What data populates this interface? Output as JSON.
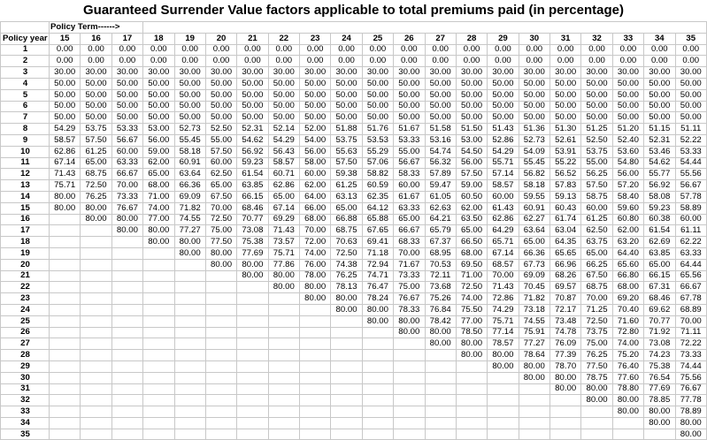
{
  "title": "Guaranteed Surrender Value factors applicable to total premiums paid (in percentage)",
  "policy_term_label": "Policy Term------>",
  "header_label": "Policy year",
  "policy_terms": [
    "15",
    "16",
    "17",
    "18",
    "19",
    "20",
    "21",
    "22",
    "23",
    "24",
    "25",
    "26",
    "27",
    "28",
    "29",
    "30",
    "31",
    "32",
    "33",
    "34",
    "35"
  ],
  "rows": [
    {
      "year": "1",
      "values": [
        "0.00",
        "0.00",
        "0.00",
        "0.00",
        "0.00",
        "0.00",
        "0.00",
        "0.00",
        "0.00",
        "0.00",
        "0.00",
        "0.00",
        "0.00",
        "0.00",
        "0.00",
        "0.00",
        "0.00",
        "0.00",
        "0.00",
        "0.00",
        "0.00"
      ]
    },
    {
      "year": "2",
      "values": [
        "0.00",
        "0.00",
        "0.00",
        "0.00",
        "0.00",
        "0.00",
        "0.00",
        "0.00",
        "0.00",
        "0.00",
        "0.00",
        "0.00",
        "0.00",
        "0.00",
        "0.00",
        "0.00",
        "0.00",
        "0.00",
        "0.00",
        "0.00",
        "0.00"
      ]
    },
    {
      "year": "3",
      "values": [
        "30.00",
        "30.00",
        "30.00",
        "30.00",
        "30.00",
        "30.00",
        "30.00",
        "30.00",
        "30.00",
        "30.00",
        "30.00",
        "30.00",
        "30.00",
        "30.00",
        "30.00",
        "30.00",
        "30.00",
        "30.00",
        "30.00",
        "30.00",
        "30.00"
      ]
    },
    {
      "year": "4",
      "values": [
        "50.00",
        "50.00",
        "50.00",
        "50.00",
        "50.00",
        "50.00",
        "50.00",
        "50.00",
        "50.00",
        "50.00",
        "50.00",
        "50.00",
        "50.00",
        "50.00",
        "50.00",
        "50.00",
        "50.00",
        "50.00",
        "50.00",
        "50.00",
        "50.00"
      ]
    },
    {
      "year": "5",
      "values": [
        "50.00",
        "50.00",
        "50.00",
        "50.00",
        "50.00",
        "50.00",
        "50.00",
        "50.00",
        "50.00",
        "50.00",
        "50.00",
        "50.00",
        "50.00",
        "50.00",
        "50.00",
        "50.00",
        "50.00",
        "50.00",
        "50.00",
        "50.00",
        "50.00"
      ]
    },
    {
      "year": "6",
      "values": [
        "50.00",
        "50.00",
        "50.00",
        "50.00",
        "50.00",
        "50.00",
        "50.00",
        "50.00",
        "50.00",
        "50.00",
        "50.00",
        "50.00",
        "50.00",
        "50.00",
        "50.00",
        "50.00",
        "50.00",
        "50.00",
        "50.00",
        "50.00",
        "50.00"
      ]
    },
    {
      "year": "7",
      "values": [
        "50.00",
        "50.00",
        "50.00",
        "50.00",
        "50.00",
        "50.00",
        "50.00",
        "50.00",
        "50.00",
        "50.00",
        "50.00",
        "50.00",
        "50.00",
        "50.00",
        "50.00",
        "50.00",
        "50.00",
        "50.00",
        "50.00",
        "50.00",
        "50.00"
      ]
    },
    {
      "year": "8",
      "values": [
        "54.29",
        "53.75",
        "53.33",
        "53.00",
        "52.73",
        "52.50",
        "52.31",
        "52.14",
        "52.00",
        "51.88",
        "51.76",
        "51.67",
        "51.58",
        "51.50",
        "51.43",
        "51.36",
        "51.30",
        "51.25",
        "51.20",
        "51.15",
        "51.11"
      ]
    },
    {
      "year": "9",
      "values": [
        "58.57",
        "57.50",
        "56.67",
        "56.00",
        "55.45",
        "55.00",
        "54.62",
        "54.29",
        "54.00",
        "53.75",
        "53.53",
        "53.33",
        "53.16",
        "53.00",
        "52.86",
        "52.73",
        "52.61",
        "52.50",
        "52.40",
        "52.31",
        "52.22"
      ]
    },
    {
      "year": "10",
      "values": [
        "62.86",
        "61.25",
        "60.00",
        "59.00",
        "58.18",
        "57.50",
        "56.92",
        "56.43",
        "56.00",
        "55.63",
        "55.29",
        "55.00",
        "54.74",
        "54.50",
        "54.29",
        "54.09",
        "53.91",
        "53.75",
        "53.60",
        "53.46",
        "53.33"
      ]
    },
    {
      "year": "11",
      "values": [
        "67.14",
        "65.00",
        "63.33",
        "62.00",
        "60.91",
        "60.00",
        "59.23",
        "58.57",
        "58.00",
        "57.50",
        "57.06",
        "56.67",
        "56.32",
        "56.00",
        "55.71",
        "55.45",
        "55.22",
        "55.00",
        "54.80",
        "54.62",
        "54.44"
      ]
    },
    {
      "year": "12",
      "values": [
        "71.43",
        "68.75",
        "66.67",
        "65.00",
        "63.64",
        "62.50",
        "61.54",
        "60.71",
        "60.00",
        "59.38",
        "58.82",
        "58.33",
        "57.89",
        "57.50",
        "57.14",
        "56.82",
        "56.52",
        "56.25",
        "56.00",
        "55.77",
        "55.56"
      ]
    },
    {
      "year": "13",
      "values": [
        "75.71",
        "72.50",
        "70.00",
        "68.00",
        "66.36",
        "65.00",
        "63.85",
        "62.86",
        "62.00",
        "61.25",
        "60.59",
        "60.00",
        "59.47",
        "59.00",
        "58.57",
        "58.18",
        "57.83",
        "57.50",
        "57.20",
        "56.92",
        "56.67"
      ]
    },
    {
      "year": "14",
      "values": [
        "80.00",
        "76.25",
        "73.33",
        "71.00",
        "69.09",
        "67.50",
        "66.15",
        "65.00",
        "64.00",
        "63.13",
        "62.35",
        "61.67",
        "61.05",
        "60.50",
        "60.00",
        "59.55",
        "59.13",
        "58.75",
        "58.40",
        "58.08",
        "57.78"
      ]
    },
    {
      "year": "15",
      "values": [
        "80.00",
        "80.00",
        "76.67",
        "74.00",
        "71.82",
        "70.00",
        "68.46",
        "67.14",
        "66.00",
        "65.00",
        "64.12",
        "63.33",
        "62.63",
        "62.00",
        "61.43",
        "60.91",
        "60.43",
        "60.00",
        "59.60",
        "59.23",
        "58.89"
      ]
    },
    {
      "year": "16",
      "values": [
        "",
        "80.00",
        "80.00",
        "77.00",
        "74.55",
        "72.50",
        "70.77",
        "69.29",
        "68.00",
        "66.88",
        "65.88",
        "65.00",
        "64.21",
        "63.50",
        "62.86",
        "62.27",
        "61.74",
        "61.25",
        "60.80",
        "60.38",
        "60.00"
      ]
    },
    {
      "year": "17",
      "values": [
        "",
        "",
        "80.00",
        "80.00",
        "77.27",
        "75.00",
        "73.08",
        "71.43",
        "70.00",
        "68.75",
        "67.65",
        "66.67",
        "65.79",
        "65.00",
        "64.29",
        "63.64",
        "63.04",
        "62.50",
        "62.00",
        "61.54",
        "61.11"
      ]
    },
    {
      "year": "18",
      "values": [
        "",
        "",
        "",
        "80.00",
        "80.00",
        "77.50",
        "75.38",
        "73.57",
        "72.00",
        "70.63",
        "69.41",
        "68.33",
        "67.37",
        "66.50",
        "65.71",
        "65.00",
        "64.35",
        "63.75",
        "63.20",
        "62.69",
        "62.22"
      ]
    },
    {
      "year": "19",
      "values": [
        "",
        "",
        "",
        "",
        "80.00",
        "80.00",
        "77.69",
        "75.71",
        "74.00",
        "72.50",
        "71.18",
        "70.00",
        "68.95",
        "68.00",
        "67.14",
        "66.36",
        "65.65",
        "65.00",
        "64.40",
        "63.85",
        "63.33"
      ]
    },
    {
      "year": "20",
      "values": [
        "",
        "",
        "",
        "",
        "",
        "80.00",
        "80.00",
        "77.86",
        "76.00",
        "74.38",
        "72.94",
        "71.67",
        "70.53",
        "69.50",
        "68.57",
        "67.73",
        "66.96",
        "66.25",
        "65.60",
        "65.00",
        "64.44"
      ]
    },
    {
      "year": "21",
      "values": [
        "",
        "",
        "",
        "",
        "",
        "",
        "80.00",
        "80.00",
        "78.00",
        "76.25",
        "74.71",
        "73.33",
        "72.11",
        "71.00",
        "70.00",
        "69.09",
        "68.26",
        "67.50",
        "66.80",
        "66.15",
        "65.56"
      ]
    },
    {
      "year": "22",
      "values": [
        "",
        "",
        "",
        "",
        "",
        "",
        "",
        "80.00",
        "80.00",
        "78.13",
        "76.47",
        "75.00",
        "73.68",
        "72.50",
        "71.43",
        "70.45",
        "69.57",
        "68.75",
        "68.00",
        "67.31",
        "66.67"
      ]
    },
    {
      "year": "23",
      "values": [
        "",
        "",
        "",
        "",
        "",
        "",
        "",
        "",
        "80.00",
        "80.00",
        "78.24",
        "76.67",
        "75.26",
        "74.00",
        "72.86",
        "71.82",
        "70.87",
        "70.00",
        "69.20",
        "68.46",
        "67.78"
      ]
    },
    {
      "year": "24",
      "values": [
        "",
        "",
        "",
        "",
        "",
        "",
        "",
        "",
        "",
        "80.00",
        "80.00",
        "78.33",
        "76.84",
        "75.50",
        "74.29",
        "73.18",
        "72.17",
        "71.25",
        "70.40",
        "69.62",
        "68.89"
      ]
    },
    {
      "year": "25",
      "values": [
        "",
        "",
        "",
        "",
        "",
        "",
        "",
        "",
        "",
        "",
        "80.00",
        "80.00",
        "78.42",
        "77.00",
        "75.71",
        "74.55",
        "73.48",
        "72.50",
        "71.60",
        "70.77",
        "70.00"
      ]
    },
    {
      "year": "26",
      "values": [
        "",
        "",
        "",
        "",
        "",
        "",
        "",
        "",
        "",
        "",
        "",
        "80.00",
        "80.00",
        "78.50",
        "77.14",
        "75.91",
        "74.78",
        "73.75",
        "72.80",
        "71.92",
        "71.11"
      ]
    },
    {
      "year": "27",
      "values": [
        "",
        "",
        "",
        "",
        "",
        "",
        "",
        "",
        "",
        "",
        "",
        "",
        "80.00",
        "80.00",
        "78.57",
        "77.27",
        "76.09",
        "75.00",
        "74.00",
        "73.08",
        "72.22"
      ]
    },
    {
      "year": "28",
      "values": [
        "",
        "",
        "",
        "",
        "",
        "",
        "",
        "",
        "",
        "",
        "",
        "",
        "",
        "80.00",
        "80.00",
        "78.64",
        "77.39",
        "76.25",
        "75.20",
        "74.23",
        "73.33"
      ]
    },
    {
      "year": "29",
      "values": [
        "",
        "",
        "",
        "",
        "",
        "",
        "",
        "",
        "",
        "",
        "",
        "",
        "",
        "",
        "80.00",
        "80.00",
        "78.70",
        "77.50",
        "76.40",
        "75.38",
        "74.44"
      ]
    },
    {
      "year": "30",
      "values": [
        "",
        "",
        "",
        "",
        "",
        "",
        "",
        "",
        "",
        "",
        "",
        "",
        "",
        "",
        "",
        "80.00",
        "80.00",
        "78.75",
        "77.60",
        "76.54",
        "75.56"
      ]
    },
    {
      "year": "31",
      "values": [
        "",
        "",
        "",
        "",
        "",
        "",
        "",
        "",
        "",
        "",
        "",
        "",
        "",
        "",
        "",
        "",
        "80.00",
        "80.00",
        "78.80",
        "77.69",
        "76.67"
      ]
    },
    {
      "year": "32",
      "values": [
        "",
        "",
        "",
        "",
        "",
        "",
        "",
        "",
        "",
        "",
        "",
        "",
        "",
        "",
        "",
        "",
        "",
        "80.00",
        "80.00",
        "78.85",
        "77.78"
      ]
    },
    {
      "year": "33",
      "values": [
        "",
        "",
        "",
        "",
        "",
        "",
        "",
        "",
        "",
        "",
        "",
        "",
        "",
        "",
        "",
        "",
        "",
        "",
        "80.00",
        "80.00",
        "78.89"
      ]
    },
    {
      "year": "34",
      "values": [
        "",
        "",
        "",
        "",
        "",
        "",
        "",
        "",
        "",
        "",
        "",
        "",
        "",
        "",
        "",
        "",
        "",
        "",
        "",
        "80.00",
        "80.00"
      ]
    },
    {
      "year": "35",
      "values": [
        "",
        "",
        "",
        "",
        "",
        "",
        "",
        "",
        "",
        "",
        "",
        "",
        "",
        "",
        "",
        "",
        "",
        "",
        "",
        "",
        "80.00"
      ]
    }
  ]
}
